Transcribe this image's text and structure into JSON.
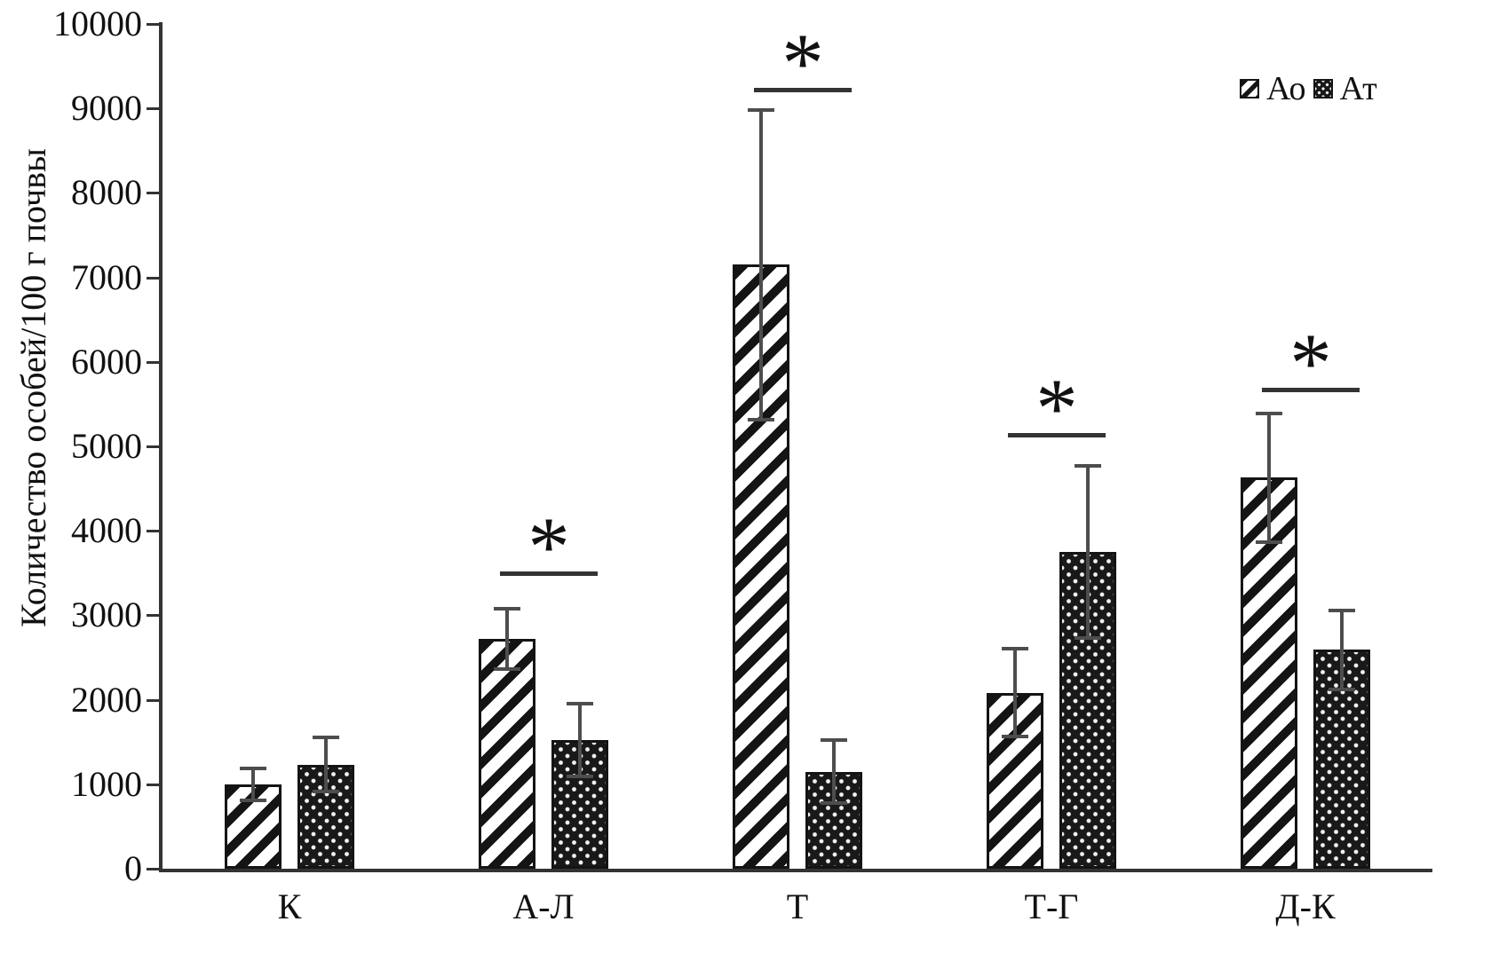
{
  "chart_data": {
    "type": "bar",
    "title": "",
    "ylabel": "Количество особей/100 г почвы",
    "xlabel": "",
    "ylim": [
      0,
      10000
    ],
    "ytick_step": 1000,
    "y_tick_labels": [
      "0",
      "1000",
      "2000",
      "3000",
      "4000",
      "5000",
      "6000",
      "7000",
      "8000",
      "9000",
      "10000"
    ],
    "grid": "off",
    "legend_position": "top-right",
    "categories": [
      "К",
      "А-Л",
      "Т",
      "Т-Г",
      "Д-К"
    ],
    "series": [
      {
        "name": "Ао",
        "pattern": "diagonal-hatch",
        "values": [
          1000,
          2720,
          7150,
          2080,
          4630
        ],
        "errors": [
          190,
          360,
          1830,
          520,
          760
        ]
      },
      {
        "name": "Ат",
        "pattern": "dot-lattice",
        "values": [
          1230,
          1520,
          1150,
          3750,
          2590
        ],
        "errors": [
          320,
          430,
          370,
          1015,
          470
        ]
      }
    ],
    "significance_marker": "*",
    "significance": [
      {
        "category": "А-Л",
        "line_level": 3520
      },
      {
        "category": "Т",
        "line_level": 9240
      },
      {
        "category": "Т-Г",
        "line_level": 5160
      },
      {
        "category": "Д-К",
        "line_level": 5690
      }
    ]
  },
  "legend": {
    "items": [
      {
        "label": "Ао"
      },
      {
        "label": "Ат"
      }
    ]
  },
  "colors": {
    "bar_ink": "#141414",
    "error_bar": "#4d4d4d",
    "axis": "#333333",
    "text": "#111111",
    "background": "#ffffff"
  }
}
